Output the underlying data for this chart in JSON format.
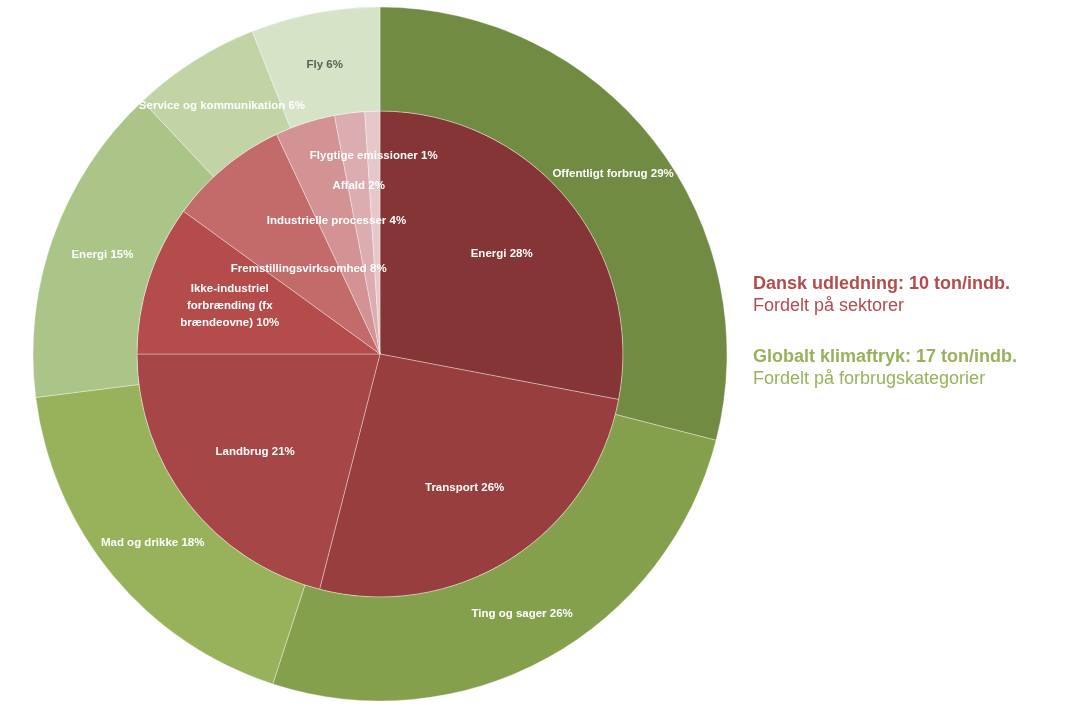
{
  "chart_data": [
    {
      "type": "pie",
      "title": "Dansk udledning: 10 ton/indb.",
      "subtitle": "Fordelt på sektorer",
      "categories": [
        "Energi",
        "Transport",
        "Landbrug",
        "Ikke-industriel forbrænding (fx brændeovne)",
        "Fremstillingsvirksomhed",
        "Industrielle processer",
        "Affald",
        "Flygtige emissioner"
      ],
      "values": [
        28,
        26,
        21,
        10,
        8,
        4,
        2,
        1
      ],
      "value_labels": [
        "28%",
        "26%",
        "21%",
        "10%",
        "8%",
        "4%",
        "2%",
        "1%"
      ],
      "colors": [
        "#853535",
        "#983e3e",
        "#a74646",
        "#b54c4c",
        "#c36b6b",
        "#d39394",
        "#dbadb0",
        "#e6c8ca"
      ]
    },
    {
      "type": "donut",
      "title": "Globalt klimaftryk: 17 ton/indb.",
      "subtitle": "Fordelt på forbrugskategorier",
      "categories": [
        "Offentligt forbrug",
        "Ting og sager",
        "Mad og drikke",
        "Energi",
        "Service og kommunikation",
        "Fly"
      ],
      "values": [
        29,
        26,
        18,
        15,
        6,
        6
      ],
      "value_labels": [
        "29%",
        "26%",
        "18%",
        "15%",
        "6%",
        "6%"
      ],
      "colors": [
        "#728b43",
        "#85a04d",
        "#98b25b",
        "#abc487",
        "#c2d4a6",
        "#d7e3c6"
      ]
    }
  ]
}
